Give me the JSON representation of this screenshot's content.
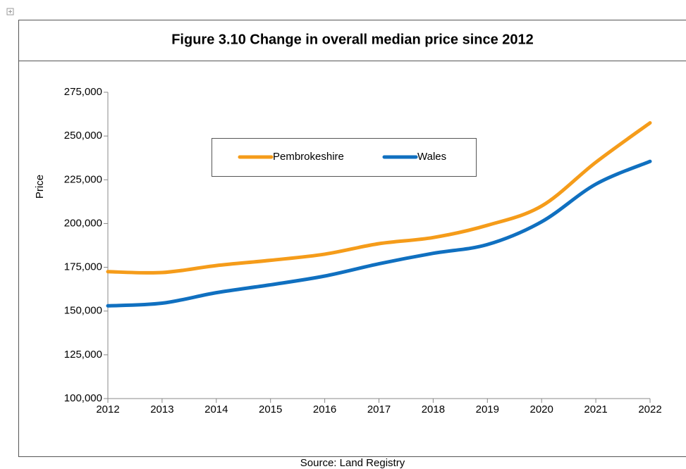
{
  "chart_data": {
    "type": "line",
    "title": "Figure 3.10 Change in overall median price since 2012",
    "y_label": "Price",
    "source": "Source: Land Registry",
    "x": [
      2012,
      2013,
      2014,
      2015,
      2016,
      2017,
      2018,
      2019,
      2020,
      2021,
      2022
    ],
    "xlim": [
      2012,
      2022
    ],
    "xticks": [
      2012,
      2013,
      2014,
      2015,
      2016,
      2017,
      2018,
      2019,
      2020,
      2021,
      2022
    ],
    "ylim": [
      100000,
      275000
    ],
    "yticks": [
      {
        "value": 100000,
        "label": "100,000"
      },
      {
        "value": 125000,
        "label": "125,000"
      },
      {
        "value": 150000,
        "label": "150,000"
      },
      {
        "value": 175000,
        "label": "175,000"
      },
      {
        "value": 200000,
        "label": "200,000"
      },
      {
        "value": 225000,
        "label": "225,000"
      },
      {
        "value": 250000,
        "label": "250,000"
      },
      {
        "value": 275000,
        "label": "275,000"
      }
    ],
    "legend": "upper center",
    "series": [
      {
        "name": "Pembrokeshire",
        "color": "#f59c1a",
        "values": [
          172500,
          172000,
          176000,
          179000,
          182500,
          188500,
          192000,
          199000,
          210000,
          235000,
          257500
        ]
      },
      {
        "name": "Wales",
        "color": "#1070c0",
        "values": [
          153000,
          154500,
          160500,
          165000,
          170000,
          177000,
          183000,
          188000,
          201000,
          222500,
          235500
        ]
      }
    ]
  }
}
